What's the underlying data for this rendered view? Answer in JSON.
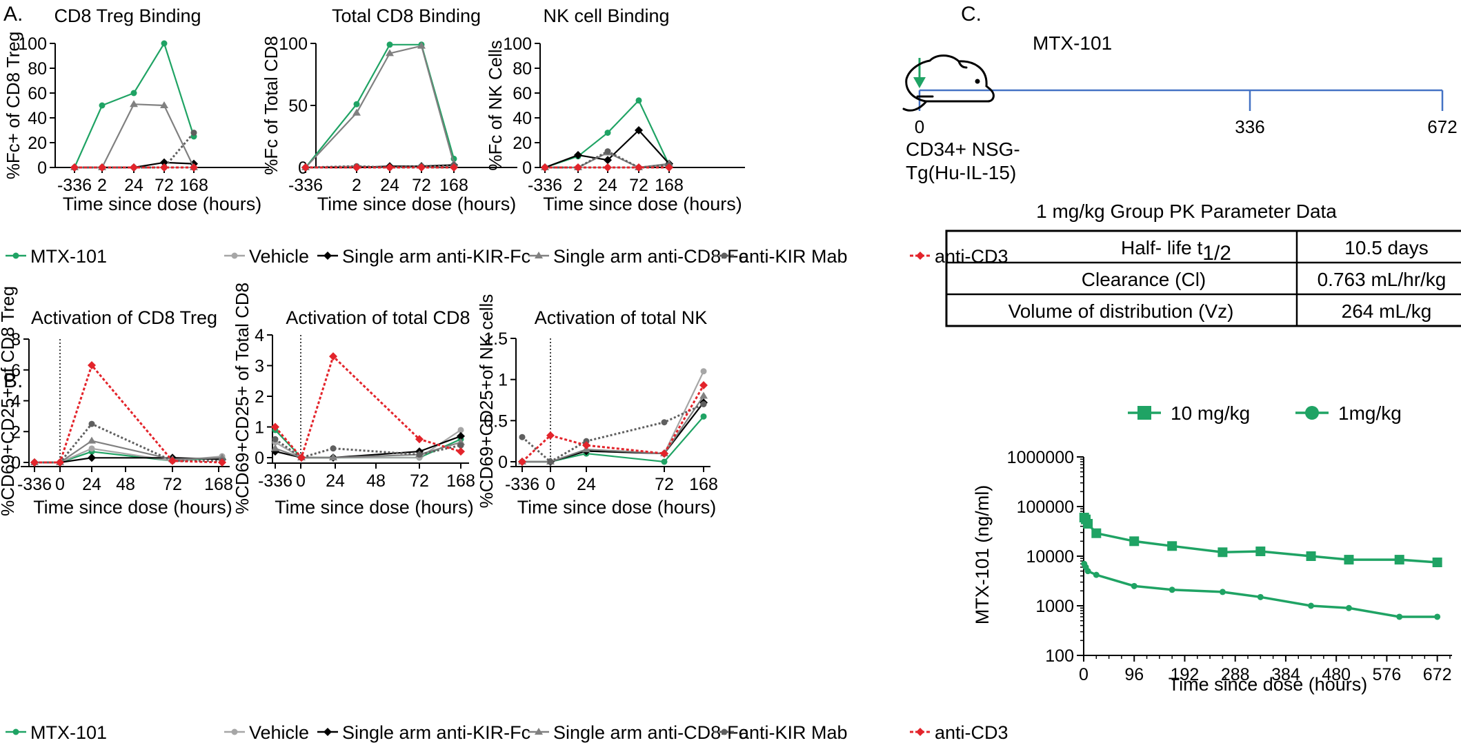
{
  "panel_labels": {
    "a": "A.",
    "b": "B.",
    "c": "C."
  },
  "colors": {
    "mtx": "#1fa364",
    "vehicle": "#a6a6a6",
    "kirfc": "#000000",
    "cd8fc": "#808080",
    "kirmab": "#5f5f5f",
    "cd3": "#e3242b",
    "timeline": "#4472c4"
  },
  "legend": {
    "items": [
      {
        "label": "MTX-101",
        "color": "#1fa364",
        "marker": "circle",
        "dash": "solid"
      },
      {
        "label": "Vehicle",
        "color": "#a6a6a6",
        "marker": "circle",
        "dash": "solid"
      },
      {
        "label": "Single arm anti-KIR-Fc",
        "color": "#000000",
        "marker": "diamond",
        "dash": "solid"
      },
      {
        "label": "Single arm anti-CD8-Fc",
        "color": "#808080",
        "marker": "triangle",
        "dash": "solid"
      },
      {
        "label": "anti-KIR Mab",
        "color": "#5f5f5f",
        "marker": "circle",
        "dash": "dashed"
      },
      {
        "label": "anti-CD3",
        "color": "#e3242b",
        "marker": "diamond",
        "dash": "dashed"
      }
    ]
  },
  "chart_data": [
    {
      "id": "a1",
      "type": "line",
      "title": "CD8 Treg Binding",
      "xlabel": "Time since dose (hours)",
      "ylabel": "%Fc+ of CD8 Treg",
      "x_tick_labels": [
        "-336",
        "2",
        "24",
        "72",
        "168"
      ],
      "x": [
        -336,
        2,
        24,
        72,
        168
      ],
      "ylim": [
        0,
        100
      ],
      "yticks": [
        0,
        20,
        40,
        60,
        80,
        100
      ],
      "series": [
        {
          "name": "MTX-101",
          "values": [
            0,
            50,
            60,
            100,
            25
          ]
        },
        {
          "name": "Vehicle",
          "values": [
            0,
            0,
            0,
            0,
            0
          ]
        },
        {
          "name": "Single arm anti-KIR-Fc",
          "values": [
            0,
            0,
            0,
            4,
            3
          ]
        },
        {
          "name": "Single arm anti-CD8-Fc",
          "values": [
            0,
            0,
            51,
            50,
            0
          ]
        },
        {
          "name": "anti-KIR Mab",
          "values": [
            0,
            0,
            0,
            0,
            28
          ]
        },
        {
          "name": "anti-CD3",
          "values": [
            0,
            0,
            0,
            0,
            0
          ]
        }
      ]
    },
    {
      "id": "a2",
      "type": "line",
      "title": "Total CD8 Binding",
      "xlabel": "Time since dose (hours)",
      "ylabel": "%Fc of Total CD8",
      "x_tick_labels": [
        "-336",
        "2",
        "24",
        "72",
        "168"
      ],
      "x": [
        -336,
        2,
        24,
        72,
        168
      ],
      "ylim": [
        0,
        100
      ],
      "yticks": [
        0,
        50,
        100
      ],
      "series": [
        {
          "name": "MTX-101",
          "values": [
            0,
            51,
            99,
            99,
            7
          ]
        },
        {
          "name": "Vehicle",
          "values": [
            0,
            1,
            0,
            0,
            1
          ]
        },
        {
          "name": "Single arm anti-KIR-Fc",
          "values": [
            0,
            0,
            1,
            1,
            2
          ]
        },
        {
          "name": "Single arm anti-CD8-Fc",
          "values": [
            0,
            44,
            92,
            98,
            3
          ]
        },
        {
          "name": "anti-KIR Mab",
          "values": [
            0,
            1,
            0,
            1,
            2
          ]
        },
        {
          "name": "anti-CD3",
          "values": [
            0,
            0,
            0,
            0,
            0
          ]
        }
      ]
    },
    {
      "id": "a3",
      "type": "line",
      "title": "NK cell Binding",
      "xlabel": "Time since dose (hours)",
      "ylabel": "%Fc of NK Cells",
      "x_tick_labels": [
        "-336",
        "2",
        "24",
        "72",
        "168"
      ],
      "x": [
        -336,
        2,
        24,
        72,
        168
      ],
      "ylim": [
        0,
        100
      ],
      "yticks": [
        0,
        20,
        40,
        60,
        80,
        100
      ],
      "series": [
        {
          "name": "MTX-101",
          "values": [
            0,
            9,
            28,
            54,
            2
          ]
        },
        {
          "name": "Vehicle",
          "values": [
            0,
            0,
            0,
            0,
            2
          ]
        },
        {
          "name": "Single arm anti-KIR-Fc",
          "values": [
            0,
            10,
            6,
            30,
            3
          ]
        },
        {
          "name": "Single arm anti-CD8-Fc",
          "values": [
            0,
            0,
            12,
            0,
            3
          ]
        },
        {
          "name": "anti-KIR Mab",
          "values": [
            0,
            0,
            13,
            0,
            2
          ]
        },
        {
          "name": "anti-CD3",
          "values": [
            0,
            0,
            0,
            0,
            0
          ]
        }
      ]
    },
    {
      "id": "b1",
      "type": "line",
      "title": "Activation of CD8 Treg",
      "xlabel": "Time since dose (hours)",
      "ylabel": "%CD69+CD25+ of CD8 Treg",
      "x_tick_labels": [
        "-336",
        "0",
        "24",
        "48",
        "72",
        "168"
      ],
      "x": [
        -336,
        0,
        24,
        72,
        168
      ],
      "ylim": [
        0,
        8
      ],
      "yticks": [
        0,
        2,
        4,
        6,
        8
      ],
      "dose_marker": "0",
      "series": [
        {
          "name": "MTX-101",
          "values": [
            0,
            0,
            0.7,
            0.1,
            0.3
          ]
        },
        {
          "name": "Vehicle",
          "values": [
            0,
            0,
            0.9,
            0.1,
            0.4
          ]
        },
        {
          "name": "Single arm anti-KIR-Fc",
          "values": [
            0,
            0,
            0.3,
            0.3,
            0.2
          ]
        },
        {
          "name": "Single arm anti-CD8-Fc",
          "values": [
            0,
            0,
            1.4,
            0.2,
            0.3
          ]
        },
        {
          "name": "anti-KIR Mab",
          "values": [
            0,
            0,
            2.5,
            0.1,
            0.1
          ]
        },
        {
          "name": "anti-CD3",
          "values": [
            0,
            0,
            6.3,
            0.1,
            0
          ]
        }
      ]
    },
    {
      "id": "b2",
      "type": "line",
      "title": "Activation of total CD8",
      "xlabel": "Time since dose (hours)",
      "ylabel": "%CD69+CD25+ of Total CD8",
      "x_tick_labels": [
        "-336",
        "0",
        "24",
        "48",
        "72",
        "168"
      ],
      "x": [
        -336,
        0,
        24,
        72,
        168
      ],
      "ylim": [
        0,
        4
      ],
      "yticks": [
        0,
        1,
        2,
        3,
        4
      ],
      "dose_marker": "0",
      "series": [
        {
          "name": "MTX-101",
          "values": [
            0.9,
            0,
            0,
            0,
            0.6
          ]
        },
        {
          "name": "Vehicle",
          "values": [
            0.5,
            0,
            0,
            0,
            0.9
          ]
        },
        {
          "name": "Single arm anti-KIR-Fc",
          "values": [
            0.2,
            0,
            0,
            0.2,
            0.7
          ]
        },
        {
          "name": "Single arm anti-CD8-Fc",
          "values": [
            0.3,
            0,
            0,
            0.1,
            0.5
          ]
        },
        {
          "name": "anti-KIR Mab",
          "values": [
            0.6,
            0,
            0.3,
            0.1,
            0.4
          ]
        },
        {
          "name": "anti-CD3",
          "values": [
            1.0,
            0,
            3.3,
            0.6,
            0.2
          ]
        }
      ]
    },
    {
      "id": "b3",
      "type": "line",
      "title": "Activation of total NK",
      "xlabel": "Time since dose (hours)",
      "ylabel": "%CD69+CD25+of NK cells",
      "x_tick_labels": [
        "-336",
        "0",
        "24",
        "72",
        "168"
      ],
      "x": [
        -336,
        0,
        24,
        72,
        168
      ],
      "ylim": [
        0,
        1.5
      ],
      "yticks": [
        0,
        0.5,
        1,
        1.5
      ],
      "ytick_labels": [
        "0",
        "0.5",
        "1",
        "1.5"
      ],
      "dose_marker": "0",
      "series": [
        {
          "name": "MTX-101",
          "values": [
            0,
            0,
            0.1,
            0,
            0.55
          ]
        },
        {
          "name": "Vehicle",
          "values": [
            0,
            0,
            0.13,
            0.1,
            1.1
          ]
        },
        {
          "name": "Single arm anti-KIR-Fc",
          "values": [
            0,
            0,
            0.13,
            0.1,
            0.72
          ]
        },
        {
          "name": "Single arm anti-CD8-Fc",
          "values": [
            0,
            0,
            0.15,
            0.1,
            0.8
          ]
        },
        {
          "name": "anti-KIR Mab",
          "values": [
            0.3,
            0,
            0.25,
            0.48,
            0.7
          ]
        },
        {
          "name": "anti-CD3",
          "values": [
            0,
            0.32,
            0.2,
            0.1,
            0.93
          ]
        }
      ]
    },
    {
      "id": "c-pk",
      "type": "line",
      "yscale": "log",
      "xlabel": "Time since dose (hours)",
      "ylabel": "MTX-101 (ng/ml)",
      "xlim": [
        0,
        700
      ],
      "xticks": [
        0,
        96,
        192,
        288,
        384,
        480,
        576,
        672
      ],
      "ylim": [
        100,
        1000000
      ],
      "yticks": [
        100,
        1000,
        10000,
        100000,
        1000000
      ],
      "series": [
        {
          "name": "10 mg/kg",
          "marker": "square",
          "x": [
            1,
            4,
            8,
            24,
            96,
            168,
            264,
            336,
            432,
            504,
            600,
            672
          ],
          "values": [
            60000,
            55000,
            45000,
            29000,
            20000,
            16000,
            12000,
            12500,
            10000,
            8500,
            8500,
            7500
          ]
        },
        {
          "name": "1mg/kg",
          "marker": "circle",
          "x": [
            1,
            4,
            8,
            24,
            96,
            168,
            264,
            336,
            432,
            504,
            600,
            672
          ],
          "values": [
            7000,
            6000,
            5000,
            4200,
            2500,
            2100,
            1900,
            1500,
            1000,
            900,
            600,
            600
          ]
        }
      ]
    }
  ],
  "timeline": {
    "drug": "MTX-101",
    "ticks": [
      "0",
      "336",
      "672"
    ],
    "model": [
      "CD34+ NSG-",
      "Tg(Hu-IL-15)"
    ]
  },
  "pk_table": {
    "title": "1 mg/kg Group PK Parameter Data",
    "rows": [
      {
        "param": "Half- life t",
        "sub": "1/2",
        "value": "10.5 days"
      },
      {
        "param": "Clearance (Cl)",
        "sub": "",
        "value": "0.763 mL/hr/kg"
      },
      {
        "param": "Volume of distribution (Vz)",
        "sub": "",
        "value": "264 mL/kg"
      }
    ]
  }
}
